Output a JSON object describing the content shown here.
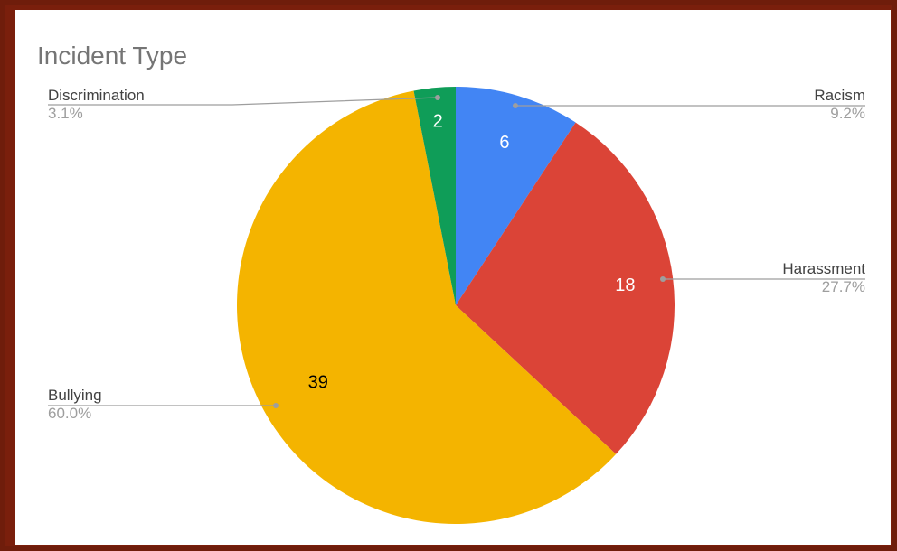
{
  "chart_data": {
    "type": "pie",
    "title": "Incident Type",
    "slices": [
      {
        "name": "Racism",
        "value": 6,
        "percent": "9.2%",
        "color": "#4285f4",
        "value_color": "#ffffff"
      },
      {
        "name": "Harassment",
        "value": 18,
        "percent": "27.7%",
        "color": "#db4437",
        "value_color": "#ffffff"
      },
      {
        "name": "Bullying",
        "value": 39,
        "percent": "60.0%",
        "color": "#f4b400",
        "value_color": "#000000"
      },
      {
        "name": "Discrimination",
        "value": 2,
        "percent": "3.1%",
        "color": "#0f9d58",
        "value_color": "#ffffff"
      }
    ],
    "start_angle": "12 o'clock",
    "direction": "clockwise",
    "legend": "labels with leader lines"
  }
}
